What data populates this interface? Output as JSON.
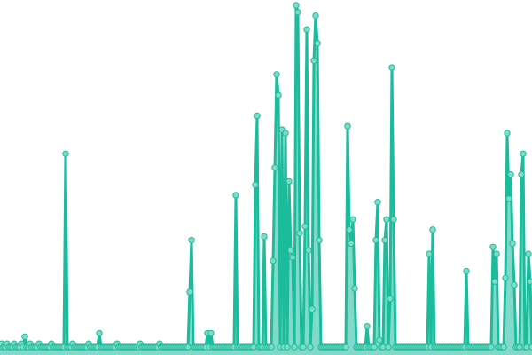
{
  "chart_data": {
    "type": "line",
    "title": "",
    "xlabel": "",
    "ylabel": "",
    "grid": false,
    "legend": "none",
    "markers": true,
    "area_fill": true,
    "ylim": [
      0,
      100
    ],
    "colors": {
      "line": "#1abc9c",
      "marker_fill": "#7fdcc4",
      "area": "#1abc9c"
    },
    "series": [
      {
        "values": [
          1,
          2,
          1,
          1,
          2,
          1,
          1,
          1,
          2,
          1,
          1,
          1,
          2,
          1,
          4,
          1,
          1,
          2,
          1,
          1,
          1,
          1,
          2,
          1,
          1,
          1,
          1,
          1,
          1,
          2,
          1,
          1,
          1,
          1,
          1,
          1,
          1,
          57,
          1,
          1,
          1,
          2,
          1,
          1,
          1,
          1,
          1,
          1,
          1,
          1,
          2,
          1,
          1,
          1,
          1,
          1,
          5,
          1,
          1,
          1,
          1,
          1,
          1,
          1,
          1,
          1,
          2,
          1,
          1,
          1,
          1,
          1,
          1,
          1,
          1,
          1,
          1,
          1,
          1,
          2,
          1,
          1,
          1,
          1,
          1,
          1,
          1,
          1,
          1,
          1,
          2,
          1,
          1,
          1,
          1,
          1,
          1,
          1,
          1,
          1,
          1,
          1,
          1,
          1,
          1,
          1,
          1,
          17,
          32,
          1,
          1,
          1,
          1,
          1,
          1,
          1,
          1,
          5,
          1,
          5,
          1,
          1,
          1,
          1,
          1,
          1,
          1,
          1,
          1,
          1,
          1,
          1,
          1,
          45,
          1,
          1,
          1,
          1,
          1,
          1,
          1,
          1,
          1,
          1,
          48,
          68,
          1,
          1,
          1,
          33,
          1,
          1,
          1,
          1,
          26,
          53,
          80,
          74,
          1,
          64,
          1,
          63,
          1,
          49,
          29,
          27,
          1,
          100,
          98,
          34,
          1,
          1,
          36,
          93,
          29,
          1,
          12,
          84,
          97,
          89,
          32,
          1,
          1,
          1,
          1,
          1,
          1,
          1,
          1,
          1,
          1,
          1,
          1,
          1,
          1,
          1,
          65,
          35,
          31,
          38,
          18,
          1,
          1,
          1,
          1,
          1,
          1,
          7,
          1,
          1,
          1,
          1,
          32,
          43,
          3,
          1,
          1,
          32,
          38,
          1,
          15,
          82,
          38,
          1,
          1,
          1,
          1,
          1,
          1,
          1,
          1,
          1,
          1,
          1,
          1,
          1,
          1,
          1,
          1,
          1,
          1,
          1,
          28,
          1,
          35,
          1,
          1,
          1,
          1,
          1,
          1,
          1,
          1,
          1,
          1,
          1,
          1,
          1,
          1,
          1,
          1,
          1,
          1,
          23,
          1,
          1,
          1,
          1,
          1,
          1,
          1,
          1,
          1,
          1,
          1,
          1,
          1,
          1,
          30,
          20,
          28,
          1,
          1,
          1,
          1,
          21,
          63,
          44,
          51,
          31,
          19,
          1,
          1,
          1,
          51,
          57,
          1,
          1,
          28,
          20,
          1
        ]
      }
    ]
  }
}
